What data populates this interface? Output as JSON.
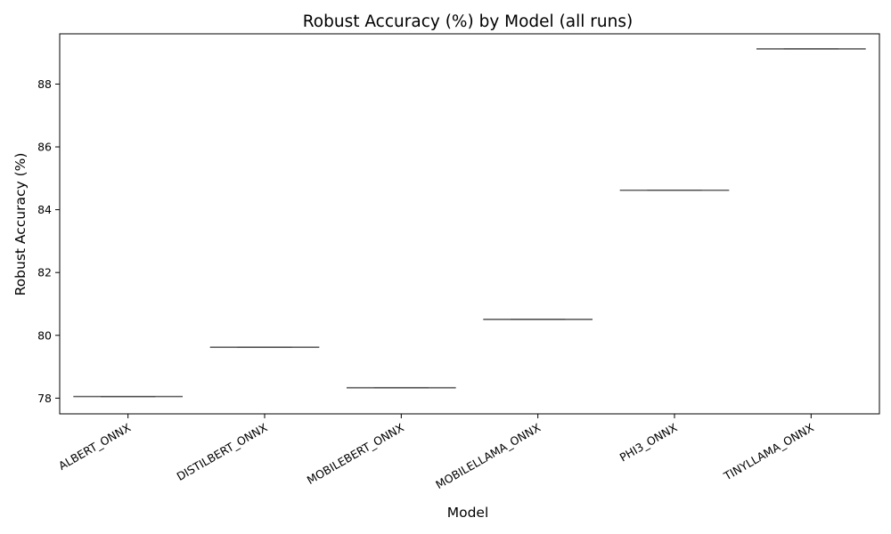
{
  "chart_data": {
    "type": "box",
    "title": "Robust Accuracy (%) by Model (all runs)",
    "xlabel": "Model",
    "ylabel": "Robust Accuracy (%)",
    "categories": [
      "ALBERT_ONNX",
      "DISTILBERT_ONNX",
      "MOBILEBERT_ONNX",
      "MOBILELLAMA_ONNX",
      "PHI3_ONNX",
      "TINYLLAMA_ONNX"
    ],
    "values": [
      78.05,
      79.62,
      78.33,
      80.51,
      84.62,
      89.12
    ],
    "ylim": [
      77.5,
      89.6
    ],
    "yticks": [
      78,
      80,
      82,
      84,
      86,
      88
    ],
    "grid": false,
    "box_color": "#606060"
  }
}
